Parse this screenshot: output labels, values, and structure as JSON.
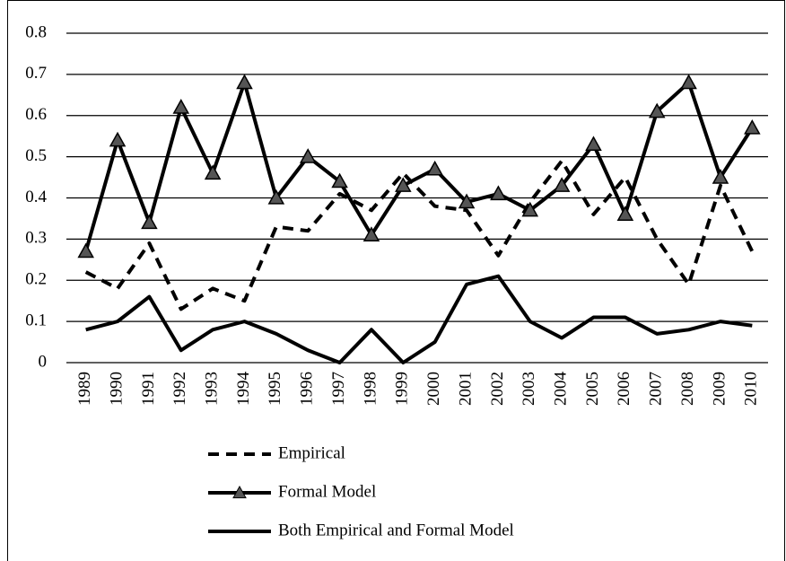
{
  "chart_data": {
    "type": "line",
    "categories": [
      "1989",
      "1990",
      "1991",
      "1992",
      "1993",
      "1994",
      "1995",
      "1996",
      "1997",
      "1998",
      "1999",
      "2000",
      "2001",
      "2002",
      "2003",
      "2004",
      "2005",
      "2006",
      "2007",
      "2008",
      "2009",
      "2010"
    ],
    "series": [
      {
        "name": "Empirical",
        "color": "#000000",
        "style": "dashed",
        "marker": "none",
        "values": [
          0.22,
          0.18,
          0.29,
          0.13,
          0.18,
          0.15,
          0.33,
          0.32,
          0.41,
          0.37,
          0.46,
          0.38,
          0.37,
          0.26,
          0.39,
          0.49,
          0.36,
          0.45,
          0.3,
          0.19,
          0.43,
          0.27
        ]
      },
      {
        "name": "Formal Model",
        "color": "#000000",
        "style": "solid",
        "marker": "triangle",
        "values": [
          0.27,
          0.54,
          0.34,
          0.62,
          0.46,
          0.68,
          0.4,
          0.5,
          0.44,
          0.31,
          0.43,
          0.47,
          0.39,
          0.41,
          0.37,
          0.43,
          0.53,
          0.36,
          0.61,
          0.68,
          0.45,
          0.57
        ]
      },
      {
        "name": "Both Empirical and Formal Model",
        "color": "#000000",
        "style": "solid",
        "marker": "none",
        "values": [
          0.08,
          0.1,
          0.16,
          0.03,
          0.08,
          0.1,
          0.07,
          0.03,
          0.0,
          0.08,
          0.0,
          0.05,
          0.19,
          0.21,
          0.1,
          0.06,
          0.11,
          0.11,
          0.07,
          0.08,
          0.1,
          0.09
        ]
      }
    ],
    "ylim": [
      0,
      0.8
    ],
    "yticks": [
      0,
      0.1,
      0.2,
      0.3,
      0.4,
      0.5,
      0.6,
      0.7,
      0.8
    ],
    "grid": true,
    "legend": "bottom"
  }
}
